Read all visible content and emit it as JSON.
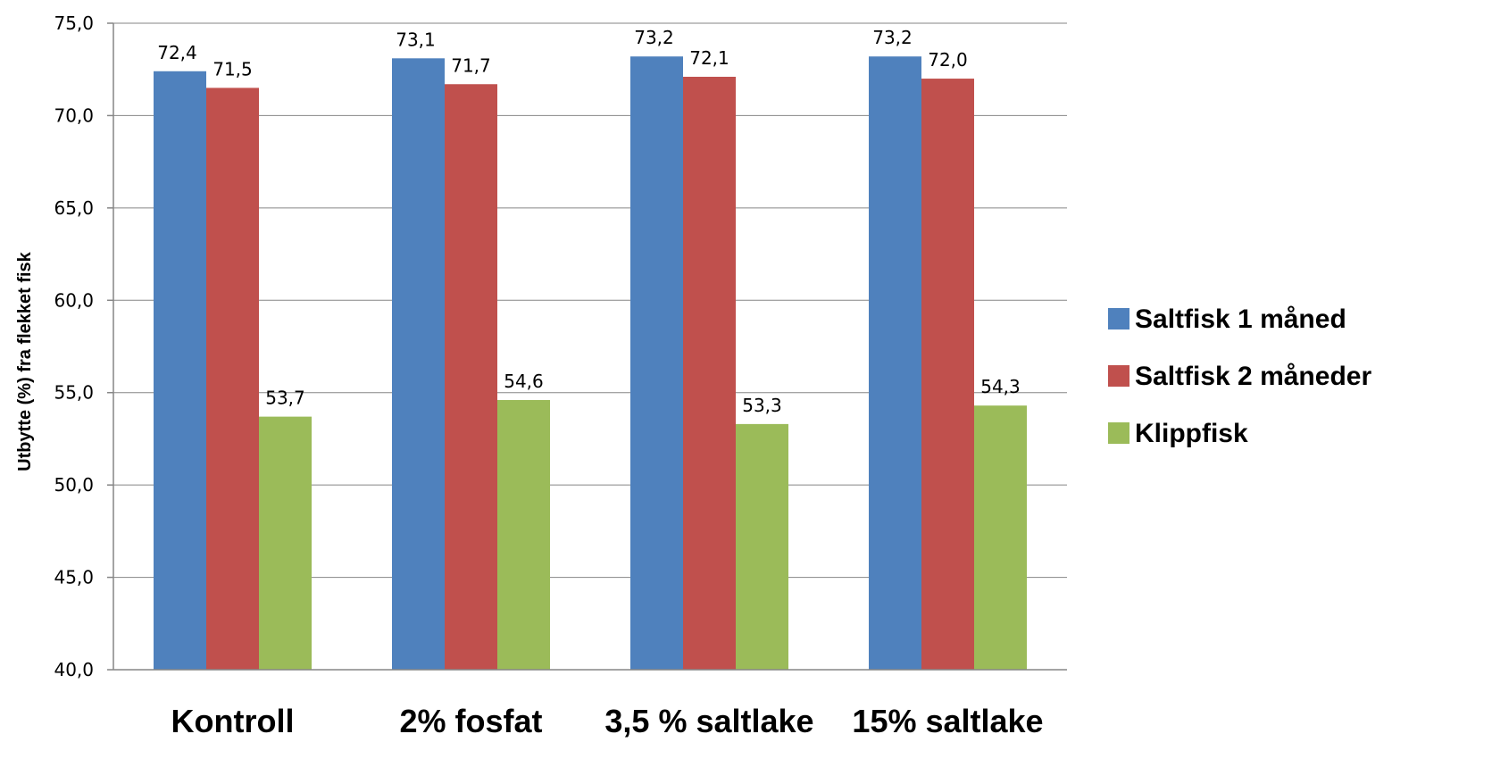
{
  "chart_data": {
    "type": "bar",
    "title": "",
    "xlabel": "",
    "ylabel": "Utbytte (%) fra flekket fisk",
    "ylim": [
      40.0,
      75.0
    ],
    "yticks": [
      40.0,
      45.0,
      50.0,
      55.0,
      60.0,
      65.0,
      70.0,
      75.0
    ],
    "ytick_labels": [
      "40,0",
      "45,0",
      "50,0",
      "55,0",
      "60,0",
      "65,0",
      "70,0",
      "75,0"
    ],
    "grid": "horizontal",
    "legend_position": "right",
    "categories": [
      "Kontroll",
      "2% fosfat",
      "3,5 % saltlake",
      "15% saltlake"
    ],
    "series": [
      {
        "name": "Saltfisk 1 måned",
        "color": "#4F81BD",
        "values": [
          72.4,
          73.1,
          73.2,
          73.2
        ],
        "labels": [
          "72,4",
          "73,1",
          "73,2",
          "73,2"
        ]
      },
      {
        "name": "Saltfisk 2 måneder",
        "color": "#C0504D",
        "values": [
          71.5,
          71.7,
          72.1,
          72.0
        ],
        "labels": [
          "71,5",
          "71,7",
          "72,1",
          "72,0"
        ]
      },
      {
        "name": "Klippfisk",
        "color": "#9BBB59",
        "values": [
          53.7,
          54.6,
          53.3,
          54.3
        ],
        "labels": [
          "53,7",
          "54,6",
          "53,3",
          "54,3"
        ]
      }
    ]
  }
}
